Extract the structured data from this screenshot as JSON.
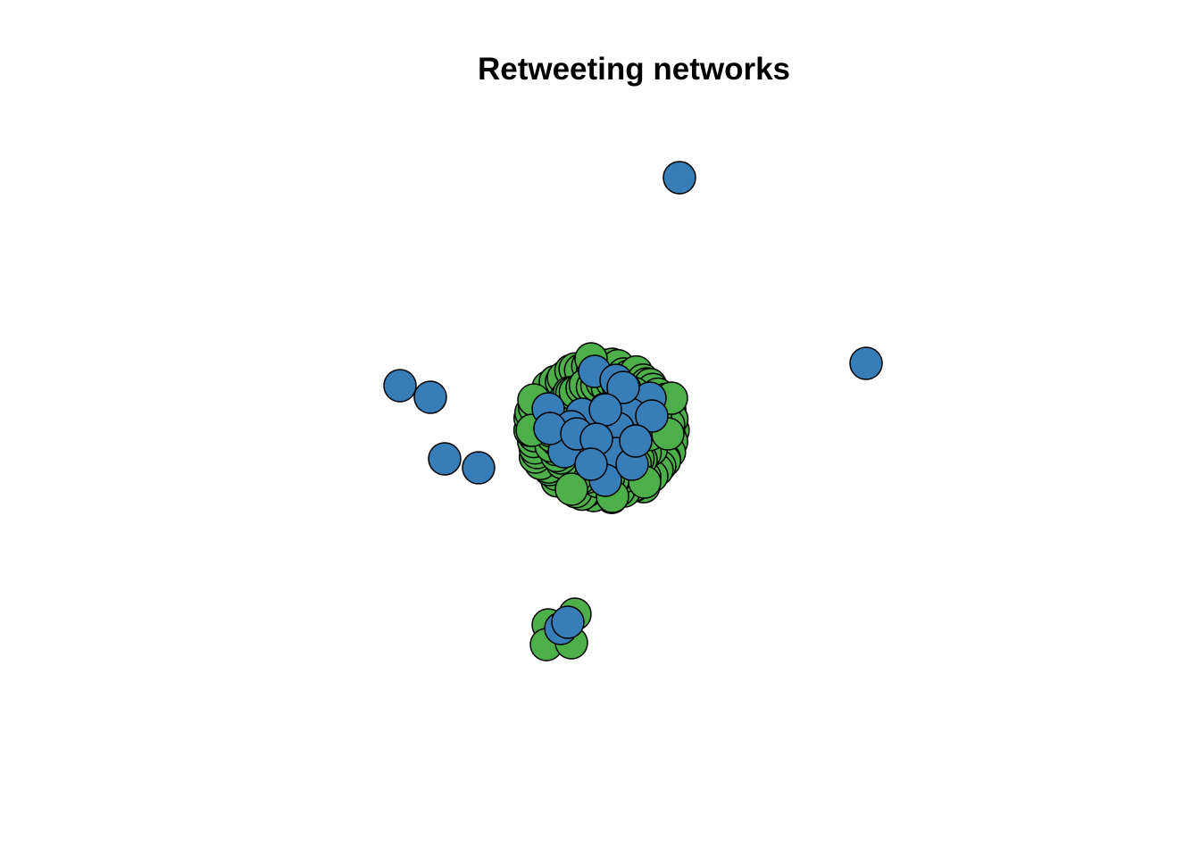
{
  "title": "Retweeting networks",
  "colors": {
    "group_green": "#4DAF4A",
    "group_blue": "#377EB8",
    "node_border": "#000000",
    "background": "#FFFFFF"
  }
}
